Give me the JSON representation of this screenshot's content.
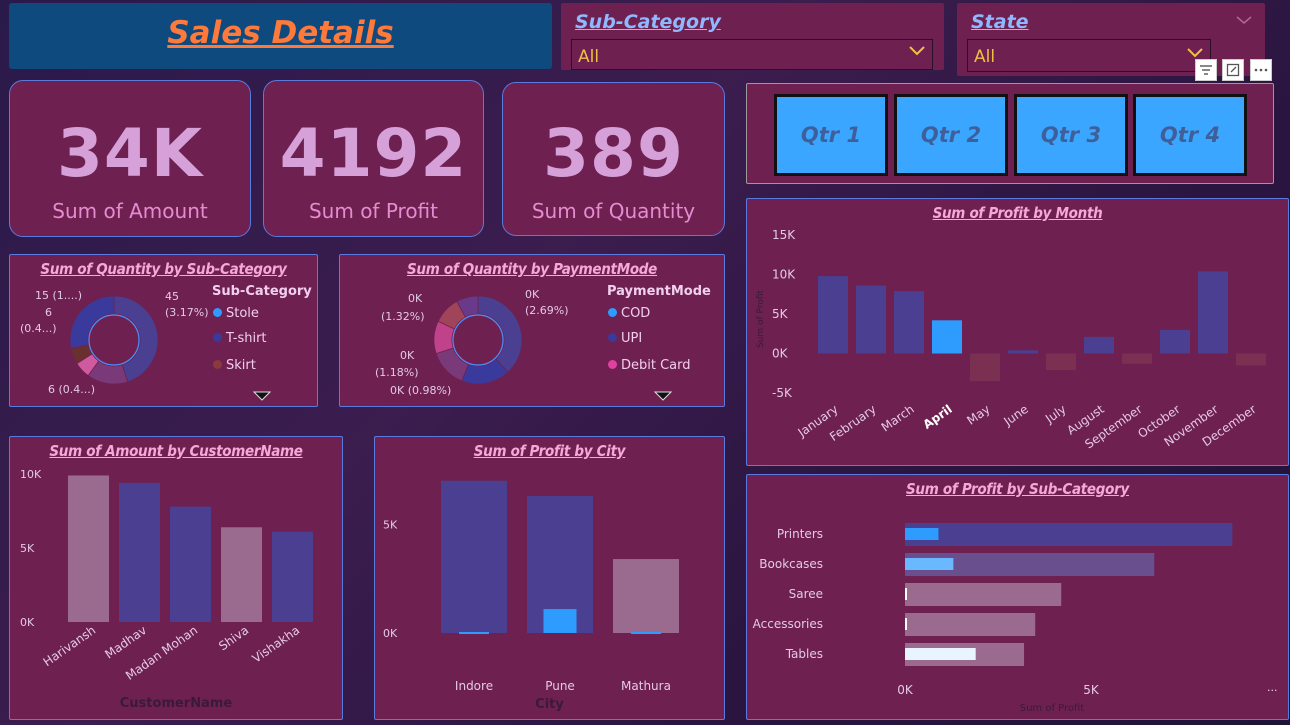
{
  "header": {
    "title": "Sales Details"
  },
  "slicers": {
    "subcategory": {
      "title": "Sub-Category",
      "value": "All"
    },
    "state": {
      "title": "State",
      "value": "All"
    },
    "quarters": [
      "Qtr 1",
      "Qtr 2",
      "Qtr 3",
      "Qtr 4"
    ]
  },
  "kpis": [
    {
      "value": "34K",
      "label": "Sum of Amount"
    },
    {
      "value": "4192",
      "label": "Sum of Profit"
    },
    {
      "value": "389",
      "label": "Sum of Quantity"
    }
  ],
  "colors": {
    "panel": "#6e2150",
    "blue_bar": "#4a3f91",
    "highlight": "#2e9bff",
    "pink_bar": "#9b6b8f",
    "title_pink": "#f6a8d9"
  },
  "chart_data": [
    {
      "id": "qty_by_subcat",
      "type": "pie",
      "title": "Sum of Quantity by Sub-Category",
      "legend_title": "Sub-Category",
      "legend": [
        {
          "name": "Stole",
          "color": "#2e9bff"
        },
        {
          "name": "T-shirt",
          "color": "#3a3a9c"
        },
        {
          "name": "Skirt",
          "color": "#8a3a3a"
        }
      ],
      "slices": [
        {
          "value": 45,
          "color": "#4a3f91"
        },
        {
          "value": 15,
          "color": "#7a3a7a"
        },
        {
          "value": 6,
          "color": "#d05aa0"
        },
        {
          "value": 6,
          "color": "#6a3030"
        },
        {
          "value": 28,
          "color": "#3a3a9c"
        }
      ],
      "data_labels": [
        "45",
        "(3.17%)",
        "15 (1....)",
        "6",
        "(0.4...)",
        "6 (0.4...)"
      ]
    },
    {
      "id": "qty_by_payment",
      "type": "pie",
      "title": "Sum of Quantity by PaymentMode",
      "legend_title": "PaymentMode",
      "legend": [
        {
          "name": "COD",
          "color": "#2e9bff"
        },
        {
          "name": "UPI",
          "color": "#3a3a9c"
        },
        {
          "name": "Debit Card",
          "color": "#e040a0"
        }
      ],
      "slices": [
        {
          "value": 38,
          "color": "#4a3f91"
        },
        {
          "value": 18,
          "color": "#3a3a9c"
        },
        {
          "value": 14,
          "color": "#7a3a7a"
        },
        {
          "value": 12,
          "color": "#c0428a"
        },
        {
          "value": 10,
          "color": "#a0445a"
        },
        {
          "value": 8,
          "color": "#6a3a8a"
        }
      ],
      "data_labels": [
        "0K",
        "(2.69%)",
        "0K",
        "(1.32%)",
        "0K",
        "(1.18%)",
        "0K (0.98%)"
      ]
    },
    {
      "id": "amount_by_customer",
      "type": "bar",
      "title": "Sum of Amount by CustomerName",
      "xlabel": "CustomerName",
      "categories": [
        "Harivansh",
        "Madhav",
        "Madan Mohan",
        "Shiva",
        "Vishakha"
      ],
      "values": [
        9900,
        9400,
        7800,
        6400,
        6100
      ],
      "colors": [
        "#9b6b8f",
        "#4a3f91",
        "#4a3f91",
        "#9b6b8f",
        "#4a3f91"
      ],
      "yticks": [
        "10K",
        "5K",
        "0K"
      ],
      "ylim": [
        0,
        10000
      ]
    },
    {
      "id": "profit_by_city",
      "type": "bar",
      "title": "Sum of Profit by City",
      "xlabel": "City",
      "categories": [
        "Indore",
        "Pune",
        "Mathura"
      ],
      "values": [
        7000,
        6300,
        3400
      ],
      "highlight": [
        0,
        1100,
        0
      ],
      "colors": [
        "#4a3f91",
        "#4a3f91",
        "#9b6b8f"
      ],
      "yticks": [
        "5K",
        "0K"
      ],
      "ylim": [
        0,
        8000
      ]
    },
    {
      "id": "profit_by_month",
      "type": "bar",
      "title": "Sum of Profit by Month",
      "ylabel": "Sum of Profit",
      "categories": [
        "January",
        "February",
        "March",
        "April",
        "May",
        "June",
        "July",
        "August",
        "September",
        "October",
        "November",
        "December"
      ],
      "values": [
        9800,
        8600,
        7900,
        4200,
        -3500,
        400,
        -2100,
        2100,
        -1300,
        3000,
        10400,
        -1500
      ],
      "selected": "April",
      "yticks": [
        "15K",
        "10K",
        "5K",
        "0K",
        "-5K"
      ],
      "ylim": [
        -5000,
        15000
      ]
    },
    {
      "id": "profit_by_subcat",
      "type": "bar",
      "orientation": "horizontal",
      "title": "Sum of Profit by Sub-Category",
      "xlabel": "Sum of Profit",
      "categories": [
        "Printers",
        "Bookcases",
        "Saree",
        "Accessories",
        "Tables"
      ],
      "values": [
        8800,
        6700,
        4200,
        3500,
        3200
      ],
      "highlight": [
        900,
        1300,
        0,
        0,
        1900
      ],
      "highlight_colors": [
        "#2e9bff",
        "#6ab8ff",
        "#ffffff",
        "#ffffff",
        "#e8f4ff"
      ],
      "colors": [
        "#4a3f91",
        "#6a4f8f",
        "#9b6b8f",
        "#9b6b8f",
        "#9b6b8f"
      ],
      "xticks": [
        "0K",
        "5K"
      ],
      "xlim": [
        0,
        10000
      ],
      "more": "..."
    }
  ]
}
